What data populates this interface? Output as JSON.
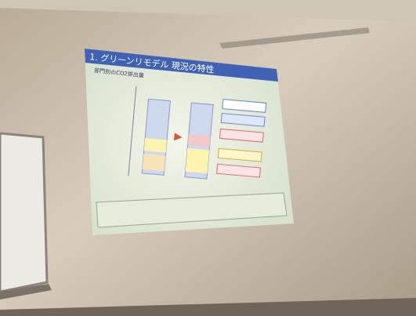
{
  "slide": {
    "title": "1. グリーンリモデル 現況の特性",
    "subtitle": "部門別のCO2排出量"
  }
}
